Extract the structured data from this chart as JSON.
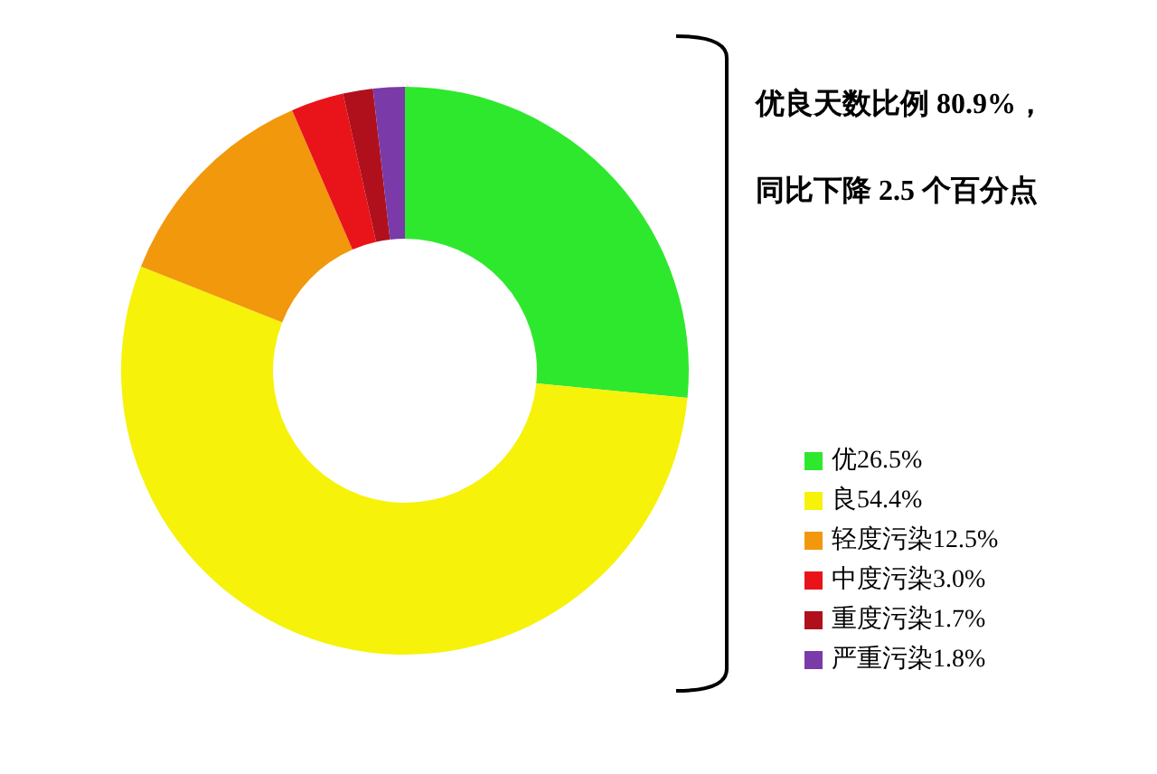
{
  "chart_data": {
    "type": "donut",
    "categories": [
      "优26.5%",
      "良54.4%",
      "轻度污染12.5%",
      "中度污染3.0%",
      "重度污染1.7%",
      "严重污染1.8%"
    ],
    "values": [
      26.5,
      54.4,
      12.5,
      3.0,
      1.7,
      1.8
    ],
    "colors": [
      "#2ee82e",
      "#f6f20a",
      "#f2980c",
      "#e8141a",
      "#b0101c",
      "#7a3aa8"
    ],
    "annotations": [
      "优良天数比例 80.9%，",
      "同比下降 2.5 个百分点"
    ],
    "legend": "bottom right"
  }
}
